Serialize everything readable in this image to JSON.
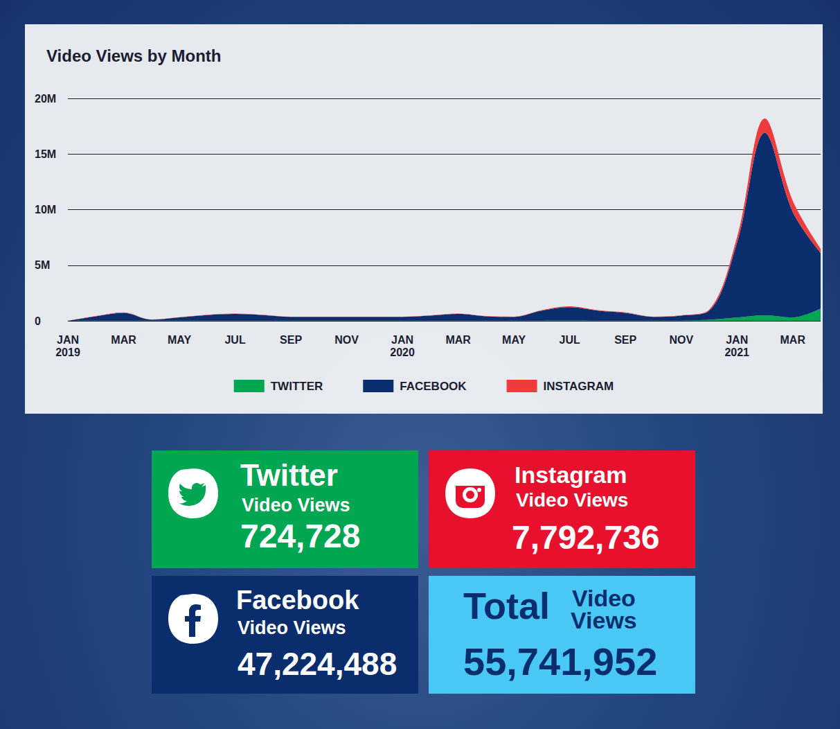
{
  "chart_data": {
    "type": "area",
    "title": "Video Views by Month",
    "categories": [
      "JAN 2019",
      null,
      "MAR",
      null,
      "MAY",
      null,
      "JUL",
      null,
      "SEP",
      null,
      "NOV",
      null,
      "JAN 2020",
      null,
      "MAR",
      null,
      "MAY",
      null,
      "JUL",
      null,
      "SEP",
      null,
      "NOV",
      null,
      "JAN 2021",
      null,
      "MAR",
      null
    ],
    "series": [
      {
        "name": "TWITTER",
        "color": "#00a651",
        "values": [
          0,
          10000,
          20000,
          10000,
          10000,
          20000,
          20000,
          20000,
          10000,
          10000,
          10000,
          10000,
          10000,
          20000,
          20000,
          10000,
          10000,
          20000,
          30000,
          20000,
          20000,
          10000,
          20000,
          100000,
          300000,
          500000,
          300000,
          1100000
        ]
      },
      {
        "name": "FACEBOOK",
        "color": "#0a2d6e",
        "values": [
          0,
          400000,
          700000,
          100000,
          300000,
          500000,
          600000,
          500000,
          350000,
          350000,
          350000,
          350000,
          350000,
          450000,
          600000,
          400000,
          350000,
          900000,
          1200000,
          900000,
          700000,
          350000,
          450000,
          800000,
          6700000,
          16400000,
          9500000,
          5000000
        ]
      },
      {
        "name": "INSTAGRAM",
        "color": "#ee3b3b",
        "values": [
          0,
          20000,
          50000,
          10000,
          20000,
          30000,
          40000,
          30000,
          20000,
          20000,
          20000,
          20000,
          20000,
          30000,
          40000,
          20000,
          20000,
          50000,
          80000,
          50000,
          40000,
          20000,
          30000,
          100000,
          500000,
          1300000,
          1000000,
          400000
        ]
      }
    ],
    "ylim": [
      0,
      20000000
    ],
    "yticks": [
      0,
      {
        "value": 5000000,
        "label": "5M"
      },
      {
        "value": 10000000,
        "label": "10M"
      },
      {
        "value": 15000000,
        "label": "15M"
      },
      {
        "value": 20000000,
        "label": "20M"
      }
    ],
    "grid": true,
    "stacked": true,
    "legend": "bottom"
  },
  "stats": [
    {
      "title": "Twitter",
      "subtitle": "Video Views",
      "value": "724,728",
      "color": "#00a651"
    },
    {
      "title": "Instagram",
      "subtitle": "Video Views",
      "value": "7,792,736",
      "color": "#e8112d"
    },
    {
      "title": "Facebook",
      "subtitle": "Video Views",
      "value": "47,224,488",
      "color": "#0a2d6e"
    },
    {
      "title": "Total",
      "subtitle": "Video Views",
      "value": "55,741,952",
      "color": "#4ac8f5"
    }
  ]
}
